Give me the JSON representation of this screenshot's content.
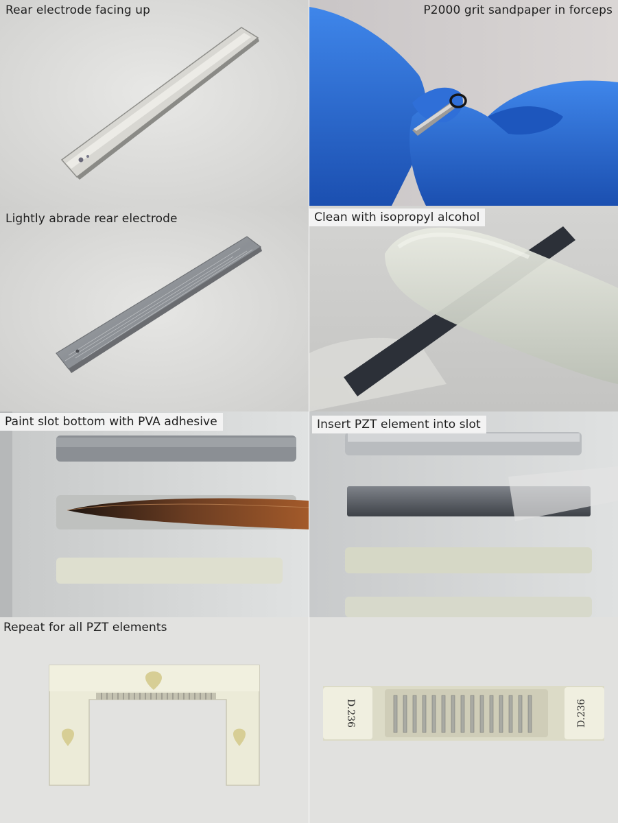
{
  "panels": [
    {
      "caption": "Rear electrode facing up"
    },
    {
      "caption": "P2000 grit sandpaper in forceps"
    },
    {
      "caption": "Lightly abrade rear electrode"
    },
    {
      "caption": "Clean with isopropyl alcohol"
    },
    {
      "caption": "Paint slot bottom with PVA adhesive"
    },
    {
      "caption": "Insert PZT element into slot"
    },
    {
      "caption": "Repeat for all PZT elements"
    },
    {
      "caption": ""
    }
  ],
  "labels": {
    "left_end": "D.236",
    "right_end": "D.236"
  },
  "colors": {
    "glove": "#2b6fd6",
    "paper_bg": "#e4e4e2",
    "fixture": "#ecebd8",
    "pzt_dark": "#2c3038"
  }
}
